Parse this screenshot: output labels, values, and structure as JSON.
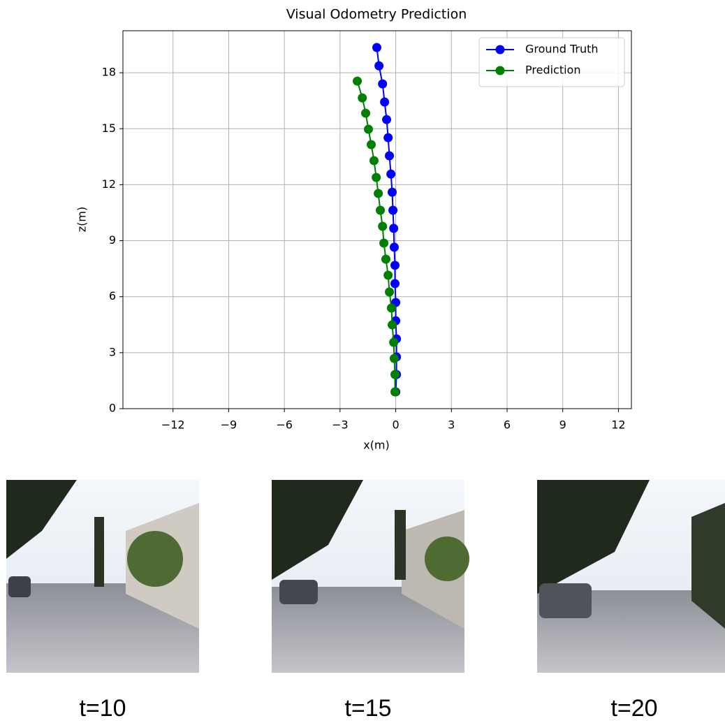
{
  "chart_data": {
    "type": "line",
    "title": "Visual Odometry Prediction",
    "x_label": "x(m)",
    "y_label": "z(m)",
    "xlim": [
      -14.7,
      12.7
    ],
    "ylim": [
      0,
      20.25
    ],
    "xticks": [
      {
        "value": -12,
        "label": "−12"
      },
      {
        "value": -9,
        "label": "−9"
      },
      {
        "value": -6,
        "label": "−6"
      },
      {
        "value": -3,
        "label": "−3"
      },
      0,
      3,
      6,
      9,
      12
    ],
    "yticks": [
      0,
      3,
      6,
      9,
      12,
      15,
      18
    ],
    "grid": true,
    "legend": "upper right",
    "series": [
      {
        "name": "Ground Truth",
        "color": "#0000ff",
        "x": [
          0,
          0.04,
          0.04,
          0.04,
          0,
          0,
          -0.04,
          -0.04,
          -0.08,
          -0.11,
          -0.15,
          -0.19,
          -0.26,
          -0.34,
          -0.41,
          -0.49,
          -0.6,
          -0.71,
          -0.9,
          -1.02
        ],
        "values": [
          0.9,
          1.83,
          2.77,
          3.74,
          4.71,
          5.69,
          6.7,
          7.68,
          8.65,
          9.66,
          10.63,
          11.6,
          12.57,
          13.55,
          14.52,
          15.49,
          16.43,
          17.4,
          18.37,
          19.35
        ]
      },
      {
        "name": "Prediction",
        "color": "#008000",
        "x": [
          -0.04,
          -0.04,
          -0.08,
          -0.11,
          -0.19,
          -0.23,
          -0.34,
          -0.41,
          -0.53,
          -0.64,
          -0.71,
          -0.83,
          -0.94,
          -1.05,
          -1.17,
          -1.32,
          -1.47,
          -1.62,
          -1.8,
          -2.07
        ],
        "values": [
          0.9,
          1.83,
          2.69,
          3.55,
          4.49,
          5.39,
          6.25,
          7.15,
          8.01,
          8.87,
          9.77,
          10.63,
          11.53,
          12.39,
          13.29,
          14.15,
          14.97,
          15.83,
          16.65,
          17.55
        ]
      }
    ]
  },
  "frames": [
    {
      "label": "t=10"
    },
    {
      "label": "t=15"
    },
    {
      "label": "t=20"
    }
  ]
}
